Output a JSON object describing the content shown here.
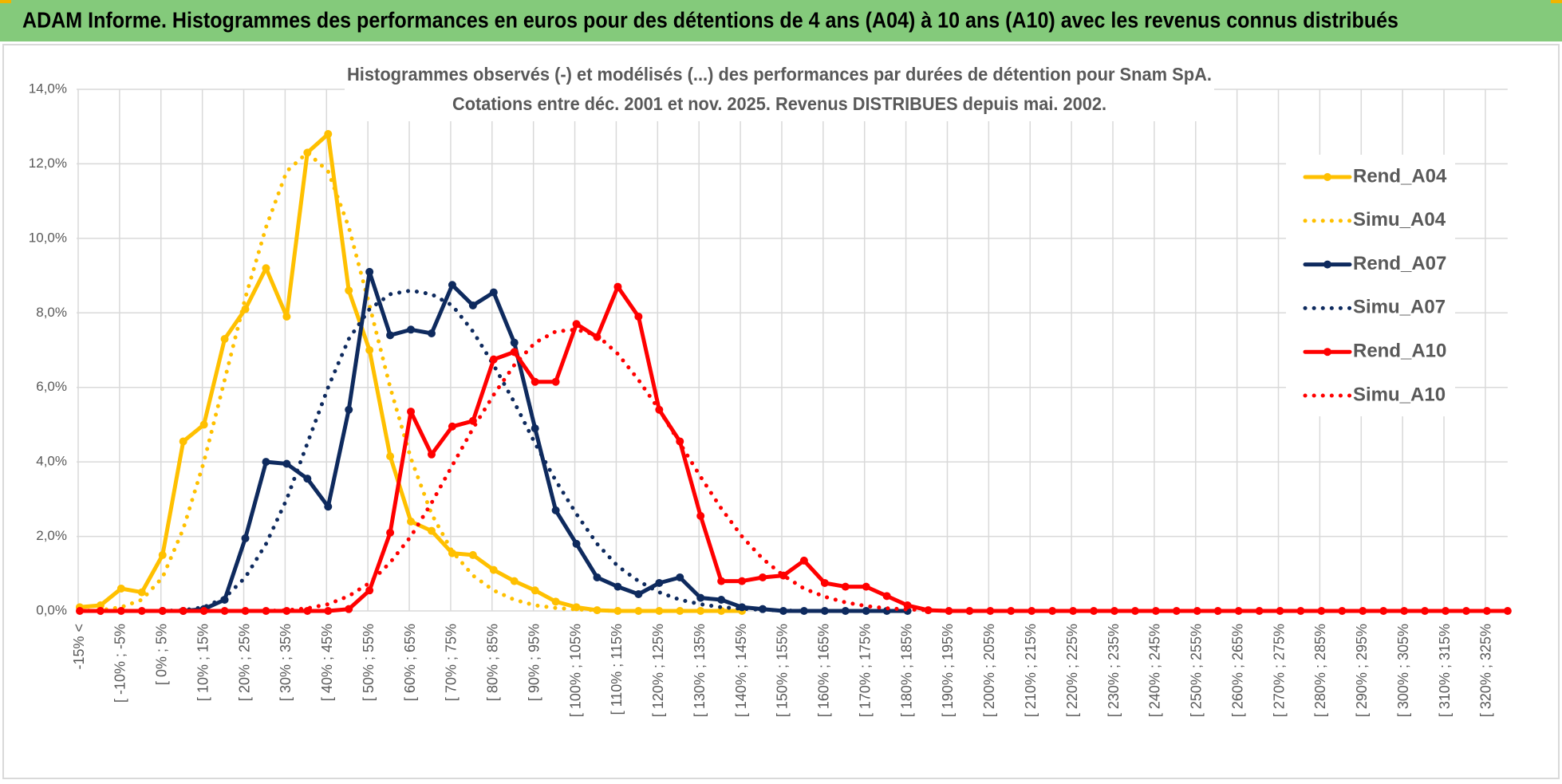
{
  "header": {
    "title": "ADAM Informe. Histogrammes des performances en euros pour des détentions de 4 ans (A04) à 10 ans (A10) avec les revenus connus distribués"
  },
  "chart_data": {
    "type": "line",
    "title": [
      "Histogrammes observés (-) et modélisés (...) des performances par durées de détention pour Snam SpA.",
      "Cotations entre déc. 2001 et nov. 2025.  Revenus DISTRIBUES depuis mai. 2002."
    ],
    "categories": [
      "-15% <",
      null,
      "[ -10% ; -5%",
      null,
      "[ 0% ; 5%",
      null,
      "[ 10% ; 15%",
      null,
      "[ 20% ; 25%",
      null,
      "[ 30% ; 35%",
      null,
      "[ 40% ; 45%",
      null,
      "[ 50% ; 55%",
      null,
      "[ 60% ; 65%",
      null,
      "[ 70% ; 75%",
      null,
      "[ 80% ; 85%",
      null,
      "[ 90% ; 95%",
      null,
      "[ 100% ; 105%",
      null,
      "[ 110% ; 115%",
      null,
      "[ 120% ; 125%",
      null,
      "[ 130% ; 135%",
      null,
      "[ 140% ; 145%",
      null,
      "[ 150% ; 155%",
      null,
      "[ 160% ; 165%",
      null,
      "[ 170% ; 175%",
      null,
      "[ 180% ; 185%",
      null,
      "[ 190% ; 195%",
      null,
      "[ 200% ; 205%",
      null,
      "[ 210% ; 215%",
      null,
      "[ 220% ; 225%",
      null,
      "[ 230% ; 235%",
      null,
      "[ 240% ; 245%",
      null,
      "[ 250% ; 255%",
      null,
      "[ 260% ; 265%",
      null,
      "[ 270% ; 275%",
      null,
      "[ 280% ; 285%",
      null,
      "[ 290% ; 295%",
      null,
      "[ 300% ; 305%",
      null,
      "[ 310% ; 315%",
      null,
      "[ 320% ; 325%",
      null
    ],
    "series": [
      {
        "name": "Rend_A04",
        "color": "#ffc000",
        "style": "solid",
        "markers": true,
        "values": [
          0.1,
          0.15,
          0.6,
          0.5,
          1.5,
          4.55,
          5.0,
          7.3,
          8.1,
          9.2,
          7.9,
          12.3,
          12.8,
          8.6,
          7.0,
          4.15,
          2.4,
          2.15,
          1.55,
          1.5,
          1.1,
          0.8,
          0.55,
          0.25,
          0.1,
          0.02,
          0,
          0,
          0,
          0,
          0,
          0,
          0,
          null,
          null,
          null,
          null,
          null,
          null,
          null,
          null,
          null,
          null,
          null,
          null,
          null,
          null,
          null,
          null,
          null,
          null,
          null,
          null,
          null,
          null,
          null,
          null,
          null,
          null,
          null,
          null,
          null,
          null,
          null,
          null,
          null,
          null,
          null,
          null,
          null
        ]
      },
      {
        "name": "Simu_A04",
        "color": "#ffc000",
        "style": "dotted",
        "markers": false,
        "values": [
          0,
          0.02,
          0.1,
          0.3,
          0.9,
          2.2,
          4.0,
          6.2,
          8.4,
          10.3,
          11.8,
          12.3,
          11.8,
          10.3,
          8.2,
          6.0,
          4.1,
          2.6,
          1.6,
          0.95,
          0.55,
          0.3,
          0.15,
          0.08,
          0.04,
          0.02,
          0,
          0,
          0,
          0,
          0,
          0,
          0,
          null,
          null,
          null,
          null,
          null,
          null,
          null,
          null,
          null,
          null,
          null,
          null,
          null,
          null,
          null,
          null,
          null,
          null,
          null,
          null,
          null,
          null,
          null,
          null,
          null,
          null,
          null,
          null,
          null,
          null,
          null,
          null,
          null,
          null,
          null,
          null,
          null
        ]
      },
      {
        "name": "Rend_A07",
        "color": "#0e2a5e",
        "style": "solid",
        "markers": true,
        "values": [
          null,
          null,
          null,
          null,
          0,
          0,
          0.05,
          0.3,
          1.95,
          4.0,
          3.95,
          3.55,
          2.8,
          5.4,
          9.1,
          7.4,
          7.55,
          7.45,
          8.75,
          8.2,
          8.55,
          7.2,
          4.9,
          2.7,
          1.8,
          0.9,
          0.65,
          0.45,
          0.75,
          0.9,
          0.35,
          0.3,
          0.1,
          0.05,
          0,
          0,
          0,
          0,
          0,
          0,
          0,
          null,
          null,
          null,
          null,
          null,
          null,
          null,
          null,
          null,
          null,
          null,
          null,
          null,
          null,
          null,
          null,
          null,
          null,
          null,
          null,
          null,
          null,
          null,
          null,
          null,
          null,
          null,
          null,
          null
        ]
      },
      {
        "name": "Simu_A07",
        "color": "#0e2a5e",
        "style": "dotted",
        "markers": false,
        "values": [
          null,
          null,
          null,
          null,
          0,
          0.02,
          0.1,
          0.35,
          0.9,
          1.8,
          3.0,
          4.5,
          6.0,
          7.3,
          8.1,
          8.5,
          8.6,
          8.5,
          8.2,
          7.5,
          6.6,
          5.6,
          4.5,
          3.5,
          2.6,
          1.8,
          1.2,
          0.8,
          0.5,
          0.3,
          0.18,
          0.1,
          0.06,
          0.03,
          0.01,
          0,
          0,
          0,
          0,
          0,
          0,
          null,
          null,
          null,
          null,
          null,
          null,
          null,
          null,
          null,
          null,
          null,
          null,
          null,
          null,
          null,
          null,
          null,
          null,
          null,
          null,
          null,
          null,
          null,
          null,
          null,
          null,
          null,
          null,
          null
        ]
      },
      {
        "name": "Rend_A10",
        "color": "#ff0000",
        "style": "solid",
        "markers": true,
        "values": [
          0,
          0,
          0,
          0,
          0,
          0,
          0,
          0,
          0,
          0,
          0,
          0,
          0,
          0.05,
          0.55,
          2.1,
          5.35,
          4.2,
          4.95,
          5.1,
          6.75,
          6.95,
          6.15,
          6.15,
          7.7,
          7.35,
          8.7,
          7.9,
          5.4,
          4.55,
          2.55,
          0.8,
          0.8,
          0.9,
          0.95,
          1.35,
          0.75,
          0.65,
          0.65,
          0.4,
          0.15,
          0.02,
          0,
          0,
          0,
          0,
          0,
          0,
          0,
          0,
          0,
          0,
          0,
          0,
          0,
          0,
          0,
          0,
          0,
          0,
          0,
          0,
          0,
          0,
          0,
          0,
          0,
          0,
          0,
          0
        ]
      },
      {
        "name": "Simu_A10",
        "color": "#ff0000",
        "style": "dotted",
        "markers": false,
        "values": [
          0,
          0,
          0,
          0,
          0,
          0,
          0,
          0,
          0,
          0,
          0.02,
          0.07,
          0.18,
          0.4,
          0.75,
          1.3,
          2.0,
          2.9,
          3.9,
          4.9,
          5.8,
          6.6,
          7.2,
          7.5,
          7.55,
          7.4,
          6.9,
          6.2,
          5.4,
          4.5,
          3.6,
          2.75,
          2.0,
          1.4,
          0.95,
          0.6,
          0.38,
          0.23,
          0.13,
          0.07,
          0.04,
          0.02,
          0,
          0,
          0,
          0,
          0,
          0,
          0,
          0,
          0,
          0,
          0,
          0,
          0,
          0,
          0,
          0,
          0,
          0,
          0,
          0,
          0,
          0,
          0,
          0,
          0,
          0,
          0,
          0
        ]
      }
    ],
    "ylim": [
      0,
      14
    ],
    "yticks": [
      {
        "value": 0,
        "label": "0,0%"
      },
      {
        "value": 2,
        "label": "2,0%"
      },
      {
        "value": 4,
        "label": "4,0%"
      },
      {
        "value": 6,
        "label": "6,0%"
      },
      {
        "value": 8,
        "label": "8,0%"
      },
      {
        "value": 10,
        "label": "10,0%"
      },
      {
        "value": 12,
        "label": "12,0%"
      },
      {
        "value": 14,
        "label": "14,0%"
      }
    ],
    "grid": true,
    "legend": "right"
  }
}
